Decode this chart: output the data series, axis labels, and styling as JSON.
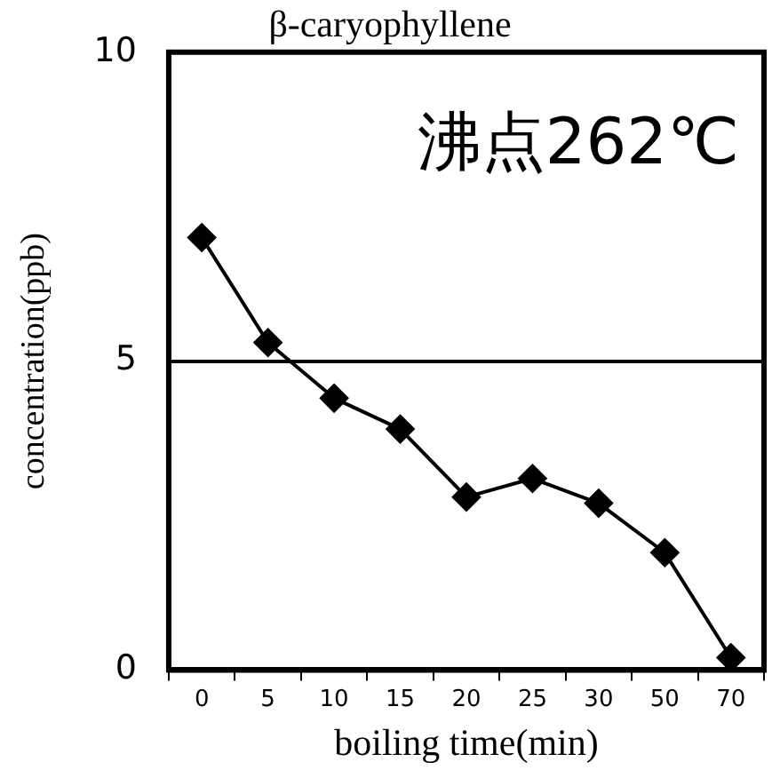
{
  "chart_data": {
    "type": "line",
    "title": "β-caryophyllene",
    "xlabel": "boiling time(min)",
    "ylabel": "concentration(ppb)",
    "categories": [
      "0",
      "5",
      "10",
      "15",
      "20",
      "25",
      "30",
      "50",
      "70"
    ],
    "series": [
      {
        "color": "#000000",
        "values": [
          7.0,
          5.3,
          4.4,
          3.9,
          2.8,
          3.1,
          2.7,
          1.9,
          0.2
        ]
      }
    ],
    "ylim": [
      0,
      10
    ],
    "yticks": [
      0,
      5,
      10
    ],
    "grid": "y",
    "legend": false,
    "marker": "diamond",
    "line_style": "solid",
    "annotations": [
      "沸点262℃"
    ]
  }
}
